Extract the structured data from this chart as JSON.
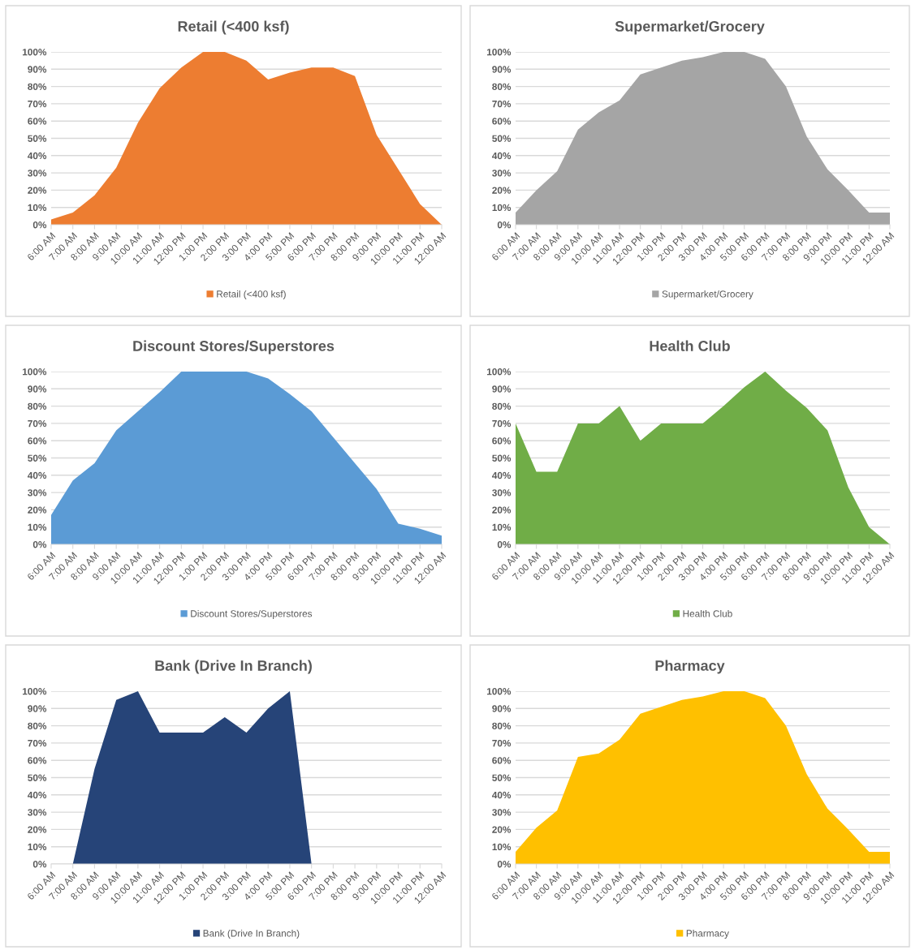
{
  "chart_data": [
    {
      "type": "area",
      "title": "Retail (<400 ksf)",
      "categories": [
        "6:00 AM",
        "7:00 AM",
        "8:00 AM",
        "9:00 AM",
        "10:00 AM",
        "11:00 AM",
        "12:00 PM",
        "1:00 PM",
        "2:00 PM",
        "3:00 PM",
        "4:00 PM",
        "5:00 PM",
        "6:00 PM",
        "7:00 PM",
        "8:00 PM",
        "9:00 PM",
        "10:00 PM",
        "11:00 PM",
        "12:00 AM"
      ],
      "series": [
        {
          "name": "Retail (<400 ksf)",
          "color": "#ed7d31",
          "values": [
            3,
            7,
            17,
            33,
            59,
            79,
            91,
            100,
            100,
            95,
            84,
            88,
            91,
            91,
            86,
            52,
            32,
            12,
            0
          ]
        }
      ],
      "ylim": [
        0,
        100
      ],
      "yticks": [
        {
          "value": 0,
          "label": "0%"
        },
        {
          "value": 10,
          "label": "10%"
        },
        {
          "value": 20,
          "label": "20%"
        },
        {
          "value": 30,
          "label": "30%"
        },
        {
          "value": 40,
          "label": "40%"
        },
        {
          "value": 50,
          "label": "50%"
        },
        {
          "value": 60,
          "label": "60%"
        },
        {
          "value": 70,
          "label": "70%"
        },
        {
          "value": 80,
          "label": "80%"
        },
        {
          "value": 90,
          "label": "90%"
        },
        {
          "value": 100,
          "label": "100%"
        }
      ],
      "grid": "y",
      "legend": "bottom"
    },
    {
      "type": "area",
      "title": "Supermarket/Grocery",
      "categories": [
        "6:00 AM",
        "7:00 AM",
        "8:00 AM",
        "9:00 AM",
        "10:00 AM",
        "11:00 AM",
        "12:00 PM",
        "1:00 PM",
        "2:00 PM",
        "3:00 PM",
        "4:00 PM",
        "5:00 PM",
        "6:00 PM",
        "7:00 PM",
        "8:00 PM",
        "9:00 PM",
        "10:00 PM",
        "11:00 PM",
        "12:00 AM"
      ],
      "series": [
        {
          "name": "Supermarket/Grocery",
          "color": "#a5a5a5",
          "values": [
            7,
            20,
            31,
            55,
            65,
            72,
            87,
            91,
            95,
            97,
            100,
            100,
            96,
            80,
            51,
            32,
            20,
            7,
            7
          ]
        }
      ],
      "ylim": [
        0,
        100
      ],
      "yticks": [
        {
          "value": 0,
          "label": "0%"
        },
        {
          "value": 10,
          "label": "10%"
        },
        {
          "value": 20,
          "label": "20%"
        },
        {
          "value": 30,
          "label": "30%"
        },
        {
          "value": 40,
          "label": "40%"
        },
        {
          "value": 50,
          "label": "50%"
        },
        {
          "value": 60,
          "label": "60%"
        },
        {
          "value": 70,
          "label": "70%"
        },
        {
          "value": 80,
          "label": "80%"
        },
        {
          "value": 90,
          "label": "90%"
        },
        {
          "value": 100,
          "label": "100%"
        }
      ],
      "grid": "y",
      "legend": "bottom"
    },
    {
      "type": "area",
      "title": "Discount Stores/Superstores",
      "categories": [
        "6:00 AM",
        "7:00 AM",
        "8:00 AM",
        "9:00 AM",
        "10:00 AM",
        "11:00 AM",
        "12:00 PM",
        "1:00 PM",
        "2:00 PM",
        "3:00 PM",
        "4:00 PM",
        "5:00 PM",
        "6:00 PM",
        "7:00 PM",
        "8:00 PM",
        "9:00 PM",
        "10:00 PM",
        "11:00 PM",
        "12:00 AM"
      ],
      "series": [
        {
          "name": "Discount Stores/Superstores",
          "color": "#5b9bd5",
          "values": [
            17,
            37,
            47,
            66,
            77,
            88,
            100,
            100,
            100,
            100,
            96,
            87,
            77,
            62,
            47,
            32,
            12,
            9,
            5
          ]
        }
      ],
      "ylim": [
        0,
        100
      ],
      "yticks": [
        {
          "value": 0,
          "label": "0%"
        },
        {
          "value": 10,
          "label": "10%"
        },
        {
          "value": 20,
          "label": "20%"
        },
        {
          "value": 30,
          "label": "30%"
        },
        {
          "value": 40,
          "label": "40%"
        },
        {
          "value": 50,
          "label": "50%"
        },
        {
          "value": 60,
          "label": "60%"
        },
        {
          "value": 70,
          "label": "70%"
        },
        {
          "value": 80,
          "label": "80%"
        },
        {
          "value": 90,
          "label": "90%"
        },
        {
          "value": 100,
          "label": "100%"
        }
      ],
      "grid": "y",
      "legend": "bottom"
    },
    {
      "type": "area",
      "title": "Health Club",
      "categories": [
        "6:00 AM",
        "7:00 AM",
        "8:00 AM",
        "9:00 AM",
        "10:00 AM",
        "11:00 AM",
        "12:00 PM",
        "1:00 PM",
        "2:00 PM",
        "3:00 PM",
        "4:00 PM",
        "5:00 PM",
        "6:00 PM",
        "7:00 PM",
        "8:00 PM",
        "9:00 PM",
        "10:00 PM",
        "11:00 PM",
        "12:00 AM"
      ],
      "series": [
        {
          "name": "Health Club",
          "color": "#70ad47",
          "values": [
            70,
            42,
            42,
            70,
            70,
            80,
            60,
            70,
            70,
            70,
            80,
            91,
            100,
            89,
            79,
            66,
            33,
            10,
            0
          ]
        }
      ],
      "ylim": [
        0,
        100
      ],
      "yticks": [
        {
          "value": 0,
          "label": "0%"
        },
        {
          "value": 10,
          "label": "10%"
        },
        {
          "value": 20,
          "label": "20%"
        },
        {
          "value": 30,
          "label": "30%"
        },
        {
          "value": 40,
          "label": "40%"
        },
        {
          "value": 50,
          "label": "50%"
        },
        {
          "value": 60,
          "label": "60%"
        },
        {
          "value": 70,
          "label": "70%"
        },
        {
          "value": 80,
          "label": "80%"
        },
        {
          "value": 90,
          "label": "90%"
        },
        {
          "value": 100,
          "label": "100%"
        }
      ],
      "grid": "y",
      "legend": "bottom"
    },
    {
      "type": "area",
      "title": "Bank (Drive In Branch)",
      "categories": [
        "6:00 AM",
        "7:00 AM",
        "8:00 AM",
        "9:00 AM",
        "10:00 AM",
        "11:00 AM",
        "12:00 PM",
        "1:00 PM",
        "2:00 PM",
        "3:00 PM",
        "4:00 PM",
        "5:00 PM",
        "6:00 PM",
        "7:00 PM",
        "8:00 PM",
        "9:00 PM",
        "10:00 PM",
        "11:00 PM",
        "12:00 AM"
      ],
      "series": [
        {
          "name": "Bank (Drive In Branch)",
          "color": "#264478",
          "values": [
            0,
            0,
            55,
            95,
            100,
            76,
            76,
            76,
            85,
            76,
            90,
            100,
            0,
            0,
            0,
            0,
            0,
            0,
            0
          ]
        }
      ],
      "ylim": [
        0,
        100
      ],
      "yticks": [
        {
          "value": 0,
          "label": "0%"
        },
        {
          "value": 10,
          "label": "10%"
        },
        {
          "value": 20,
          "label": "20%"
        },
        {
          "value": 30,
          "label": "30%"
        },
        {
          "value": 40,
          "label": "40%"
        },
        {
          "value": 50,
          "label": "50%"
        },
        {
          "value": 60,
          "label": "60%"
        },
        {
          "value": 70,
          "label": "70%"
        },
        {
          "value": 80,
          "label": "80%"
        },
        {
          "value": 90,
          "label": "90%"
        },
        {
          "value": 100,
          "label": "100%"
        }
      ],
      "grid": "y",
      "legend": "bottom"
    },
    {
      "type": "area",
      "title": "Pharmacy",
      "categories": [
        "6:00 AM",
        "7:00 AM",
        "8:00 AM",
        "9:00 AM",
        "10:00 AM",
        "11:00 AM",
        "12:00 PM",
        "1:00 PM",
        "2:00 PM",
        "3:00 PM",
        "4:00 PM",
        "5:00 PM",
        "6:00 PM",
        "7:00 PM",
        "8:00 PM",
        "9:00 PM",
        "10:00 PM",
        "11:00 PM",
        "12:00 AM"
      ],
      "series": [
        {
          "name": "Pharmacy",
          "color": "#ffc000",
          "values": [
            7,
            21,
            31,
            62,
            64,
            72,
            87,
            91,
            95,
            97,
            100,
            100,
            96,
            80,
            52,
            32,
            20,
            7,
            7
          ]
        }
      ],
      "ylim": [
        0,
        100
      ],
      "yticks": [
        {
          "value": 0,
          "label": "0%"
        },
        {
          "value": 10,
          "label": "10%"
        },
        {
          "value": 20,
          "label": "20%"
        },
        {
          "value": 30,
          "label": "30%"
        },
        {
          "value": 40,
          "label": "40%"
        },
        {
          "value": 50,
          "label": "50%"
        },
        {
          "value": 60,
          "label": "60%"
        },
        {
          "value": 70,
          "label": "70%"
        },
        {
          "value": 80,
          "label": "80%"
        },
        {
          "value": 90,
          "label": "90%"
        },
        {
          "value": 100,
          "label": "100%"
        }
      ],
      "grid": "y",
      "legend": "bottom"
    }
  ]
}
